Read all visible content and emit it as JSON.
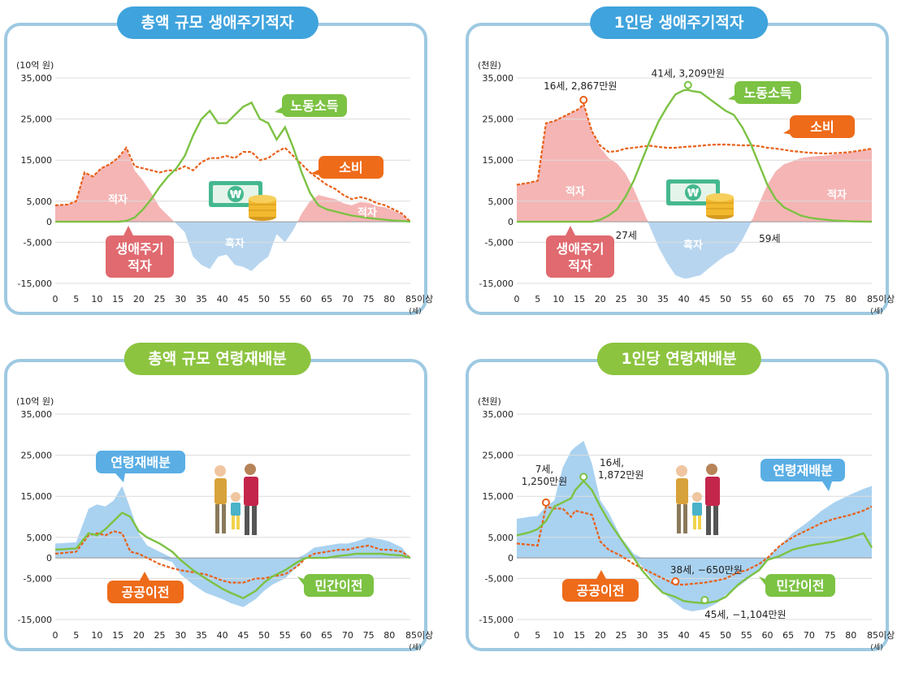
{
  "colors": {
    "labor": "#7cc243",
    "consumption": "#e8611a",
    "deficit_fill": "#f5b5b5",
    "surplus_fill": "#b7d5ef",
    "realloc_fill": "#a9d2f0",
    "public": "#e8611a",
    "private": "#7cc243",
    "callout_red": "#e06a6f",
    "callout_orange": "#ee6b1a",
    "callout_green": "#7cc243",
    "callout_blue": "#5aaee4"
  },
  "common": {
    "y_ticks": [
      "35,000",
      "25,000",
      "15,000",
      "5,000",
      "0",
      "-5,000",
      "-15,000"
    ],
    "x_ticks": [
      "0",
      "5",
      "10",
      "15",
      "20",
      "25",
      "30",
      "35",
      "40",
      "45",
      "50",
      "55",
      "60",
      "65",
      "70",
      "75",
      "80",
      "85이상"
    ],
    "x_unit": "(세)"
  },
  "panels": [
    {
      "title": "총액 규모 생애주기적자",
      "unit": "(10억 원)",
      "labels": {
        "labor": "노동소득",
        "consumption": "소비",
        "deficit_left": "적자",
        "deficit_right": "적자",
        "surplus": "흑자",
        "callout_line1": "생애주기",
        "callout_line2": "적자"
      }
    },
    {
      "title": "1인당 생애주기적자",
      "unit": "(천원)",
      "labels": {
        "labor": "노동소득",
        "consumption": "소비",
        "deficit_left": "적자",
        "deficit_right": "적자",
        "surplus": "흑자",
        "callout_line1": "생애주기",
        "callout_line2": "적자",
        "age_start": "27세",
        "age_end": "59세",
        "peak_consumption": "16세, 2,867만원",
        "peak_labor": "41세, 3,209만원"
      }
    },
    {
      "title": "총액 규모 연령재배분",
      "unit": "(10억 원)",
      "labels": {
        "realloc": "연령재배분",
        "public": "공공이전",
        "private": "민간이전"
      }
    },
    {
      "title": "1인당 연령재배분",
      "unit": "(천원)",
      "labels": {
        "realloc": "연령재배분",
        "public": "공공이전",
        "private": "민간이전",
        "ann_public_peak_1": "7세,",
        "ann_public_peak_2": "1,250만원",
        "ann_private_peak_1": "16세,",
        "ann_private_peak_2": "1,872만원",
        "ann_public_min": "38세, −650만원",
        "ann_private_min": "45세, −1,104만원"
      }
    }
  ],
  "chart_data": [
    {
      "type": "line",
      "title": "총액 규모 생애주기적자",
      "ylabel": "(10억 원)",
      "xlabel": "(세)",
      "ylim": [
        -15000,
        35000
      ],
      "x": [
        0,
        3,
        5,
        7,
        9,
        11,
        13,
        15,
        17,
        19,
        21,
        23,
        25,
        27,
        29,
        31,
        33,
        35,
        37,
        39,
        41,
        43,
        45,
        47,
        49,
        51,
        53,
        55,
        57,
        59,
        61,
        63,
        65,
        67,
        69,
        71,
        73,
        75,
        77,
        79,
        81,
        83,
        85
      ],
      "series": [
        {
          "name": "노동소득",
          "values": [
            0,
            0,
            0,
            0,
            0,
            0,
            0,
            0,
            200,
            1000,
            3000,
            5500,
            8500,
            11000,
            13000,
            16000,
            21000,
            25000,
            27000,
            24000,
            24000,
            26000,
            28000,
            29000,
            25000,
            24000,
            20000,
            23000,
            18000,
            12000,
            7000,
            4000,
            3000,
            2500,
            2000,
            1500,
            1200,
            900,
            700,
            500,
            300,
            200,
            0
          ]
        },
        {
          "name": "소비",
          "values": [
            4000,
            4200,
            5000,
            12000,
            11000,
            13000,
            14000,
            15500,
            18000,
            13500,
            13000,
            12500,
            12000,
            12500,
            12500,
            13500,
            12500,
            14500,
            15500,
            15500,
            16000,
            15500,
            17000,
            17000,
            15000,
            15500,
            17000,
            18000,
            16000,
            14000,
            12000,
            10500,
            9000,
            8000,
            6500,
            5500,
            6000,
            5500,
            4500,
            4000,
            3000,
            2000,
            0
          ]
        }
      ],
      "annotations": [
        "노동소득",
        "소비",
        "적자",
        "흑자",
        "생애주기 적자"
      ]
    },
    {
      "type": "line",
      "title": "1인당 생애주기적자",
      "ylabel": "(천원)",
      "xlabel": "(세)",
      "ylim": [
        -15000,
        35000
      ],
      "x": [
        0,
        3,
        5,
        7,
        9,
        11,
        13,
        15,
        16,
        18,
        20,
        22,
        24,
        26,
        28,
        30,
        32,
        34,
        36,
        38,
        40,
        41,
        42,
        44,
        46,
        48,
        50,
        52,
        54,
        56,
        58,
        60,
        62,
        64,
        66,
        68,
        70,
        72,
        74,
        76,
        78,
        80,
        82,
        85
      ],
      "series": [
        {
          "name": "노동소득",
          "values": [
            0,
            0,
            0,
            0,
            0,
            0,
            0,
            0,
            0,
            0,
            500,
            1500,
            3000,
            6000,
            10000,
            15000,
            20000,
            24500,
            28000,
            31000,
            32000,
            32090,
            31800,
            31500,
            30000,
            28500,
            27000,
            26000,
            23000,
            19000,
            14000,
            9000,
            5500,
            3500,
            2500,
            1500,
            1000,
            700,
            500,
            300,
            200,
            100,
            50,
            0
          ]
        },
        {
          "name": "소비",
          "values": [
            9000,
            9500,
            10000,
            24000,
            24500,
            25500,
            26500,
            27500,
            28670,
            22000,
            18500,
            17000,
            17200,
            17800,
            18000,
            18300,
            18500,
            18200,
            18000,
            18000,
            18200,
            18300,
            18300,
            18500,
            18700,
            18800,
            18800,
            18700,
            18600,
            18600,
            18400,
            18000,
            17800,
            17500,
            17200,
            17000,
            16800,
            16700,
            16600,
            16700,
            16800,
            17000,
            17300,
            17800
          ]
        }
      ],
      "annotations": [
        "16세, 2,867만원",
        "41세, 3,209만원",
        "27세",
        "59세"
      ]
    },
    {
      "type": "area",
      "title": "총액 규모 연령재배분",
      "ylabel": "(10억 원)",
      "xlabel": "(세)",
      "ylim": [
        -15000,
        35000
      ],
      "x": [
        0,
        5,
        8,
        10,
        12,
        14,
        16,
        18,
        20,
        22,
        25,
        28,
        30,
        33,
        36,
        40,
        42,
        45,
        48,
        50,
        52,
        55,
        58,
        60,
        62,
        65,
        68,
        70,
        72,
        75,
        78,
        80,
        83,
        85
      ],
      "series": [
        {
          "name": "연령재배분",
          "values": [
            3500,
            3800,
            12000,
            13000,
            12500,
            14000,
            17500,
            12000,
            6000,
            3000,
            1500,
            -1000,
            -4000,
            -6500,
            -8500,
            -10000,
            -11000,
            -12000,
            -10000,
            -8000,
            -6500,
            -5000,
            -2000,
            1000,
            2500,
            3000,
            3500,
            3500,
            4000,
            5000,
            4500,
            4000,
            2500,
            0
          ]
        },
        {
          "name": "공공이전",
          "values": [
            1000,
            1500,
            5500,
            6000,
            5500,
            6500,
            6000,
            1500,
            1000,
            0,
            -1500,
            -2500,
            -3000,
            -3500,
            -4000,
            -5500,
            -6000,
            -6000,
            -5000,
            -5000,
            -4500,
            -4000,
            -2000,
            0,
            1000,
            1500,
            2000,
            2000,
            2500,
            3000,
            2000,
            2000,
            1500,
            0
          ]
        },
        {
          "name": "민간이전",
          "values": [
            2000,
            2300,
            6000,
            5500,
            7000,
            9000,
            11000,
            10000,
            6500,
            5000,
            3500,
            1500,
            -500,
            -3000,
            -5000,
            -7500,
            -8500,
            -9800,
            -8000,
            -6000,
            -4500,
            -3000,
            -1000,
            0,
            0,
            0,
            500,
            700,
            1000,
            1000,
            1000,
            800,
            600,
            0
          ]
        }
      ],
      "annotations": [
        "연령재배분",
        "공공이전",
        "민간이전"
      ]
    },
    {
      "type": "area",
      "title": "1인당 연령재배분",
      "ylabel": "(천원)",
      "xlabel": "(세)",
      "ylim": [
        -15000,
        35000
      ],
      "x": [
        0,
        3,
        5,
        7,
        9,
        11,
        13,
        14,
        16,
        18,
        20,
        22,
        25,
        28,
        30,
        33,
        35,
        38,
        40,
        42,
        45,
        48,
        50,
        53,
        55,
        58,
        60,
        63,
        66,
        70,
        73,
        76,
        80,
        83,
        85
      ],
      "series": [
        {
          "name": "연령재배분",
          "values": [
            9500,
            10000,
            10200,
            12500,
            14000,
            22000,
            26000,
            27000,
            28500,
            23000,
            14000,
            11000,
            5000,
            1000,
            -2000,
            -6000,
            -8500,
            -11000,
            -12500,
            -13000,
            -12500,
            -11000,
            -9000,
            -7000,
            -5500,
            -3000,
            -500,
            3000,
            6000,
            9000,
            11500,
            13500,
            15500,
            16800,
            17500
          ]
        },
        {
          "name": "공공이전",
          "values": [
            3500,
            3200,
            3000,
            12500,
            12000,
            12000,
            10000,
            11500,
            11000,
            10500,
            4000,
            2000,
            500,
            -1500,
            -2500,
            -4000,
            -5000,
            -6500,
            -6500,
            -6300,
            -6000,
            -5500,
            -5000,
            -3500,
            -3000,
            -1500,
            0,
            3000,
            5000,
            7000,
            8500,
            9500,
            10500,
            11500,
            12500
          ]
        },
        {
          "name": "민간이전",
          "values": [
            5500,
            6200,
            7000,
            9000,
            12500,
            13500,
            14500,
            16500,
            18720,
            16500,
            12500,
            9000,
            4500,
            0,
            -3000,
            -6500,
            -8500,
            -9500,
            -10500,
            -10800,
            -11040,
            -10500,
            -9500,
            -6500,
            -5000,
            -3000,
            -500,
            500,
            2000,
            3000,
            3500,
            4000,
            5000,
            6000,
            2500
          ]
        }
      ],
      "annotations": [
        "7세, 1,250만원",
        "16세, 1,872만원",
        "38세, −650만원",
        "45세, −1,104만원"
      ]
    }
  ]
}
